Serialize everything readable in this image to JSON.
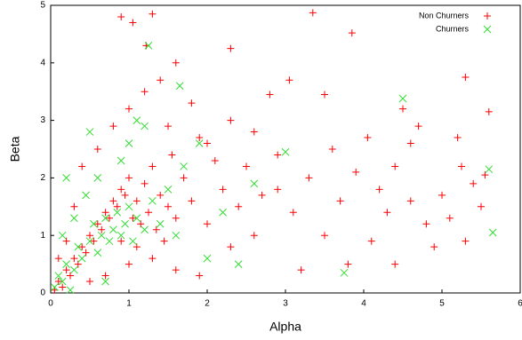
{
  "chart_data": {
    "type": "scatter",
    "x_label": "Alpha",
    "y_label": "Beta",
    "xlim": [
      0,
      6
    ],
    "ylim": [
      0,
      5
    ],
    "xticks": [
      0,
      1,
      2,
      3,
      4,
      5,
      6
    ],
    "yticks": [
      0,
      1,
      2,
      3,
      4,
      5
    ],
    "legend": "top-right",
    "series": [
      {
        "name": "Non Churners",
        "color": "#ff0000",
        "marker": "plus",
        "x": [
          0.05,
          0.1,
          0.15,
          0.2,
          0.25,
          0.3,
          0.35,
          0.4,
          0.45,
          0.5,
          0.55,
          0.6,
          0.65,
          0.7,
          0.75,
          0.8,
          0.85,
          0.9,
          0.95,
          1.0,
          1.05,
          1.1,
          1.15,
          1.2,
          1.25,
          1.3,
          1.35,
          1.4,
          1.45,
          1.5,
          1.55,
          1.6,
          1.7,
          1.8,
          1.9,
          2.0,
          2.1,
          2.2,
          2.3,
          2.4,
          2.5,
          2.6,
          2.7,
          0.3,
          0.4,
          0.6,
          0.8,
          1.0,
          1.2,
          1.4,
          1.6,
          0.2,
          0.1,
          0.7,
          1.0,
          1.3,
          1.6,
          1.9,
          0.5,
          0.9,
          1.1,
          1.5,
          1.8,
          2.0,
          2.3,
          2.6,
          2.9,
          3.1,
          3.3,
          3.5,
          3.7,
          3.9,
          4.1,
          4.2,
          4.4,
          4.6,
          4.7,
          5.1,
          5.3,
          5.4,
          0.9,
          1.05,
          1.3,
          3.35,
          3.85,
          1.22,
          2.3,
          5.3,
          5.6,
          4.5,
          3.05,
          2.8,
          3.5,
          5.55,
          5.25,
          5.0,
          4.3,
          4.8,
          5.5,
          4.9,
          4.4,
          3.8,
          3.2,
          2.9,
          3.6,
          4.05,
          4.6,
          5.2
        ],
        "y": [
          0.05,
          0.2,
          0.1,
          0.4,
          0.3,
          0.6,
          0.5,
          0.8,
          0.7,
          1.0,
          0.9,
          1.2,
          1.1,
          1.4,
          1.3,
          1.6,
          1.5,
          1.8,
          1.7,
          2.0,
          1.3,
          1.6,
          1.2,
          1.9,
          1.4,
          2.2,
          1.1,
          1.7,
          0.9,
          1.5,
          2.4,
          1.3,
          2.0,
          1.6,
          2.7,
          1.2,
          2.3,
          1.8,
          0.8,
          1.5,
          2.2,
          1.0,
          1.7,
          1.5,
          2.2,
          2.5,
          2.9,
          3.2,
          3.5,
          3.7,
          4.0,
          0.9,
          0.6,
          0.3,
          0.5,
          0.6,
          0.4,
          0.3,
          0.2,
          0.9,
          0.8,
          2.9,
          3.3,
          2.6,
          3.0,
          2.8,
          2.4,
          1.4,
          2.0,
          1.0,
          1.6,
          2.1,
          0.9,
          1.8,
          2.2,
          1.6,
          2.9,
          1.3,
          0.9,
          1.9,
          4.8,
          4.7,
          4.85,
          4.87,
          4.52,
          4.3,
          4.25,
          3.75,
          3.15,
          3.2,
          3.7,
          3.45,
          3.45,
          2.05,
          2.2,
          1.7,
          1.4,
          1.2,
          1.5,
          0.8,
          0.5,
          0.5,
          0.4,
          1.8,
          2.5,
          2.7,
          2.6,
          2.7
        ]
      },
      {
        "name": "Churners",
        "color": "#33dd33",
        "marker": "x",
        "x": [
          0.05,
          0.1,
          0.15,
          0.2,
          0.3,
          0.35,
          0.4,
          0.5,
          0.55,
          0.6,
          0.65,
          0.7,
          0.75,
          0.8,
          0.85,
          0.9,
          0.95,
          1.0,
          1.05,
          1.1,
          1.2,
          1.3,
          1.4,
          1.5,
          1.6,
          1.7,
          0.3,
          0.45,
          0.6,
          0.9,
          1.0,
          1.2,
          0.2,
          0.5,
          1.1,
          1.25,
          1.65,
          2.0,
          2.2,
          2.6,
          3.0,
          3.75,
          4.5,
          5.6,
          5.65,
          0.25,
          0.7,
          1.9,
          2.4,
          0.15
        ],
        "y": [
          0.1,
          0.3,
          0.2,
          0.5,
          0.4,
          0.8,
          0.6,
          0.9,
          1.2,
          0.7,
          1.0,
          1.3,
          0.9,
          1.1,
          1.4,
          1.0,
          1.2,
          1.5,
          0.9,
          1.3,
          1.1,
          1.6,
          1.2,
          1.8,
          1.0,
          2.2,
          1.3,
          1.7,
          2.0,
          2.3,
          2.6,
          2.9,
          2.0,
          2.8,
          3.0,
          4.3,
          3.6,
          0.6,
          1.4,
          1.9,
          2.45,
          0.35,
          3.38,
          2.15,
          1.05,
          0.05,
          0.2,
          2.6,
          0.5,
          1.0
        ]
      }
    ]
  }
}
